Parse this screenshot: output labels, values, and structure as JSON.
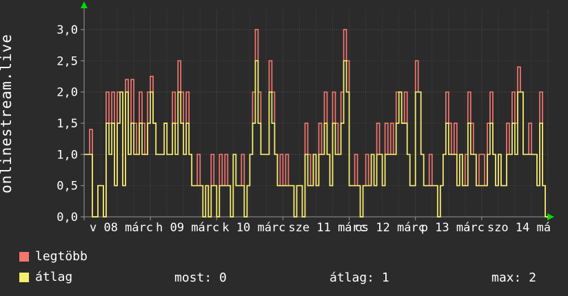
{
  "chart_data": {
    "type": "line",
    "title": "",
    "ylabel": "onlinestream.live",
    "ylim": [
      0,
      3.3
    ],
    "ytick_labels": [
      "0,0",
      "0,5",
      "1,0",
      "1,5",
      "2,0",
      "2,5",
      "3,0"
    ],
    "ytick_values": [
      0,
      0.5,
      1,
      1.5,
      2,
      2.5,
      3
    ],
    "x_unit": "hours",
    "x_range_hours": 168,
    "x_day_labels": [
      "v 08 márc",
      "h 09 márc",
      "k 10 márc",
      "sze 11 márc",
      "cs 12 márc",
      "p 13 márc",
      "szo 14 má"
    ],
    "grid": true,
    "legend_position": "bottom-left",
    "series": [
      {
        "name": "legtöbb",
        "color": "#f4766f",
        "style": "step",
        "values": [
          1,
          1,
          1.4,
          0,
          0,
          0.5,
          0.5,
          0,
          2,
          1.5,
          2,
          0.5,
          2,
          2,
          0.5,
          2.2,
          1,
          2.2,
          1.5,
          1,
          2,
          1.5,
          1,
          2,
          2.25,
          1.5,
          1,
          1,
          1,
          1.5,
          1,
          1,
          2,
          1.5,
          2.5,
          2,
          1,
          2,
          1,
          0.5,
          0.5,
          1,
          0.5,
          0,
          0.5,
          0,
          1,
          0.5,
          0,
          1,
          0.5,
          1,
          0.5,
          0,
          1,
          0.5,
          0.5,
          1,
          0,
          0.5,
          1,
          2,
          3,
          2,
          1,
          1,
          1,
          2.5,
          2,
          1,
          0.5,
          1,
          0.5,
          1,
          0.5,
          0.5,
          0,
          0.5,
          0.5,
          0,
          1.5,
          1,
          0.5,
          1,
          0.5,
          1.5,
          1,
          2,
          1,
          0.5,
          2,
          1.5,
          1,
          2,
          3,
          2.5,
          0.5,
          0.5,
          1,
          0.5,
          0,
          0.5,
          1,
          0.5,
          1,
          0.5,
          1.5,
          1,
          0.5,
          1.5,
          1,
          1.5,
          1,
          2,
          2,
          1.5,
          2,
          1,
          0.5,
          0.5,
          2.5,
          2,
          1,
          0.5,
          0.5,
          1,
          0.5,
          0.5,
          0,
          0.5,
          1,
          2,
          1.5,
          1,
          1.5,
          0.5,
          1,
          0.5,
          1,
          2,
          1.5,
          1,
          0.5,
          1,
          1,
          0.5,
          1.5,
          2,
          1,
          0.5,
          1,
          0.5,
          0.5,
          1.5,
          1,
          2,
          1.5,
          2.4,
          2,
          1,
          1,
          1.5,
          1,
          1,
          0.5,
          2,
          0.5,
          0
        ]
      },
      {
        "name": "átlag",
        "color": "#f2ef6c",
        "style": "step",
        "values": [
          1,
          1,
          1,
          0,
          0,
          0.5,
          0.5,
          0,
          1.5,
          1,
          1.5,
          0.5,
          1.5,
          2,
          0.5,
          2,
          1,
          1.5,
          1,
          1,
          1.5,
          1,
          1,
          1.5,
          2,
          1.5,
          1,
          1,
          1,
          1.5,
          1,
          1,
          1.5,
          1,
          2,
          1.5,
          1,
          1.5,
          1,
          0.5,
          0.5,
          0.5,
          0.5,
          0,
          0.5,
          0,
          0.5,
          0.5,
          0,
          0.5,
          0.5,
          0.5,
          0.5,
          0,
          1,
          0.5,
          0.5,
          0.5,
          0,
          0.5,
          1,
          1.5,
          2.5,
          1.5,
          1,
          1,
          1,
          2,
          1.5,
          1,
          0.5,
          0.5,
          0.5,
          0.5,
          0.5,
          0.5,
          0,
          0.5,
          0.5,
          0,
          1,
          0.5,
          0.5,
          1,
          0.5,
          1,
          1,
          1.5,
          1,
          0.5,
          1.5,
          1,
          1,
          1.5,
          2.5,
          2,
          0.5,
          0.5,
          0.5,
          0.5,
          0,
          0.5,
          0.5,
          0.5,
          1,
          0.5,
          1,
          1,
          0.5,
          1,
          1,
          1,
          1,
          1.5,
          2,
          1.5,
          1.5,
          1,
          0.5,
          0.5,
          2,
          2,
          1,
          0.5,
          0.5,
          0.5,
          0.5,
          0.5,
          0,
          0.5,
          1,
          1.5,
          1,
          1,
          1,
          0.5,
          1,
          0.5,
          0.5,
          1.5,
          1,
          1,
          0.5,
          0.5,
          0.5,
          0.5,
          1,
          1.5,
          1,
          0.5,
          1,
          0.5,
          0.5,
          1,
          1,
          1.5,
          1,
          2,
          2,
          1,
          1,
          1,
          1,
          1,
          0.5,
          1.5,
          0.5,
          0
        ]
      }
    ]
  },
  "legend": {
    "items": [
      {
        "label": "legtöbb",
        "color": "#f4766f"
      },
      {
        "label": "átlag",
        "color": "#f2ef6c"
      }
    ]
  },
  "stats": [
    {
      "text": "most: 0"
    },
    {
      "text": "átlag: 1"
    },
    {
      "text": "max: 2"
    }
  ],
  "colors": {
    "background": "#2b2b2b",
    "text": "#ffffff",
    "arrow": "#00dd00",
    "grid_minor": "#454545",
    "grid_major": "#565656",
    "grid_day": "#6b4848",
    "axis": "#9a9a9a"
  }
}
